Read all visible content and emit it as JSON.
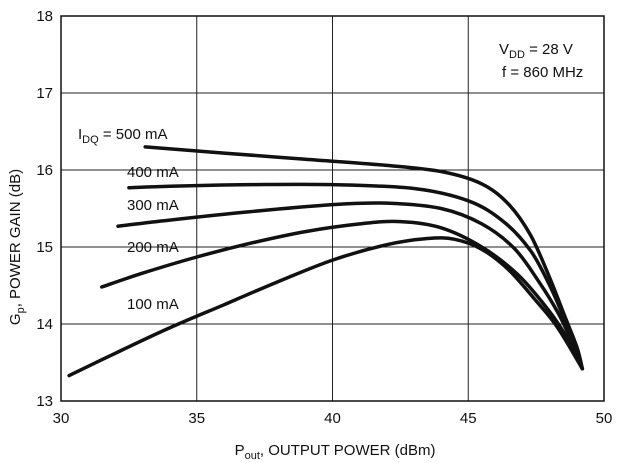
{
  "chart_data": {
    "type": "line",
    "title": "",
    "xlabel": "P",
    "xlabel_sub": "out",
    "xlabel_rest": ", OUTPUT POWER (dBm)",
    "ylabel": "G",
    "ylabel_sub": "p",
    "ylabel_rest": ", POWER GAIN (dB)",
    "xlim": [
      30,
      50
    ],
    "ylim": [
      13,
      18
    ],
    "xticks": [
      30,
      35,
      40,
      45,
      50
    ],
    "yticks": [
      13,
      14,
      15,
      16,
      17,
      18
    ],
    "grid": true,
    "conditions": {
      "vdd_prefix": "V",
      "vdd_sub": "DD",
      "vdd_rest": " = 28 V",
      "freq": "f = 860 MHz"
    },
    "series_label_prefix": "I",
    "series_label_prefix_sub": "DQ",
    "series_label_prefix_rest": " = ",
    "series": [
      {
        "name": "500 mA",
        "color": "#111111",
        "x": [
          33.1,
          36,
          39,
          42,
          44,
          45.5,
          46.5,
          47.3,
          48,
          48.5,
          49.0,
          49.2
        ],
        "y": [
          16.3,
          16.22,
          16.14,
          16.06,
          15.98,
          15.82,
          15.55,
          15.15,
          14.6,
          14.15,
          13.7,
          13.42
        ]
      },
      {
        "name": "400 mA",
        "color": "#111111",
        "x": [
          32.5,
          34,
          37,
          40,
          43,
          45,
          46.3,
          47.3,
          48,
          48.5,
          49.0,
          49.2
        ],
        "y": [
          15.77,
          15.79,
          15.81,
          15.81,
          15.76,
          15.6,
          15.33,
          14.95,
          14.5,
          14.1,
          13.68,
          13.42
        ]
      },
      {
        "name": "300 mA",
        "color": "#111111",
        "x": [
          32.1,
          34,
          37,
          40,
          42,
          44,
          45.5,
          46.7,
          47.6,
          48.3,
          48.8,
          49.2
        ],
        "y": [
          15.27,
          15.35,
          15.46,
          15.55,
          15.57,
          15.5,
          15.3,
          14.98,
          14.55,
          14.15,
          13.78,
          13.42
        ]
      },
      {
        "name": "200 mA",
        "color": "#111111",
        "x": [
          31.5,
          33,
          35,
          37,
          39,
          41,
          42.5,
          44,
          45.5,
          46.8,
          47.8,
          48.5,
          49.2
        ],
        "y": [
          14.48,
          14.66,
          14.87,
          15.05,
          15.2,
          15.3,
          15.33,
          15.25,
          15.0,
          14.65,
          14.25,
          13.9,
          13.42
        ]
      },
      {
        "name": "100 mA",
        "color": "#111111",
        "x": [
          30.3,
          32,
          34,
          36,
          38,
          40,
          42,
          43.5,
          44.5,
          45.5,
          46.5,
          47.5,
          48.3,
          49.2
        ],
        "y": [
          13.33,
          13.62,
          13.95,
          14.25,
          14.55,
          14.83,
          15.03,
          15.11,
          15.1,
          14.97,
          14.7,
          14.3,
          13.95,
          13.42
        ]
      }
    ]
  }
}
